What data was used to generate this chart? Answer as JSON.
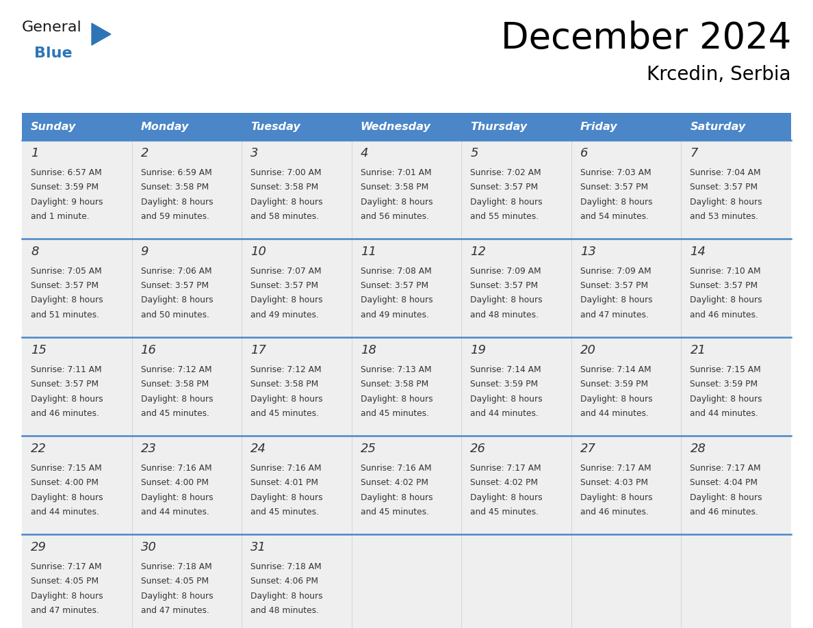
{
  "title": "December 2024",
  "subtitle": "Krcedin, Serbia",
  "header_color": "#4A86C8",
  "header_text_color": "#FFFFFF",
  "row_bg_color": "#EFEFEF",
  "empty_bg_color": "#FFFFFF",
  "separator_color": "#4A86C8",
  "text_color": "#333333",
  "day_names": [
    "Sunday",
    "Monday",
    "Tuesday",
    "Wednesday",
    "Thursday",
    "Friday",
    "Saturday"
  ],
  "days": [
    {
      "day": 1,
      "col": 0,
      "row": 0,
      "sunrise": "6:57 AM",
      "sunset": "3:59 PM",
      "daylight_h": "9 hours",
      "daylight_m": "and 1 minute."
    },
    {
      "day": 2,
      "col": 1,
      "row": 0,
      "sunrise": "6:59 AM",
      "sunset": "3:58 PM",
      "daylight_h": "8 hours",
      "daylight_m": "and 59 minutes."
    },
    {
      "day": 3,
      "col": 2,
      "row": 0,
      "sunrise": "7:00 AM",
      "sunset": "3:58 PM",
      "daylight_h": "8 hours",
      "daylight_m": "and 58 minutes."
    },
    {
      "day": 4,
      "col": 3,
      "row": 0,
      "sunrise": "7:01 AM",
      "sunset": "3:58 PM",
      "daylight_h": "8 hours",
      "daylight_m": "and 56 minutes."
    },
    {
      "day": 5,
      "col": 4,
      "row": 0,
      "sunrise": "7:02 AM",
      "sunset": "3:57 PM",
      "daylight_h": "8 hours",
      "daylight_m": "and 55 minutes."
    },
    {
      "day": 6,
      "col": 5,
      "row": 0,
      "sunrise": "7:03 AM",
      "sunset": "3:57 PM",
      "daylight_h": "8 hours",
      "daylight_m": "and 54 minutes."
    },
    {
      "day": 7,
      "col": 6,
      "row": 0,
      "sunrise": "7:04 AM",
      "sunset": "3:57 PM",
      "daylight_h": "8 hours",
      "daylight_m": "and 53 minutes."
    },
    {
      "day": 8,
      "col": 0,
      "row": 1,
      "sunrise": "7:05 AM",
      "sunset": "3:57 PM",
      "daylight_h": "8 hours",
      "daylight_m": "and 51 minutes."
    },
    {
      "day": 9,
      "col": 1,
      "row": 1,
      "sunrise": "7:06 AM",
      "sunset": "3:57 PM",
      "daylight_h": "8 hours",
      "daylight_m": "and 50 minutes."
    },
    {
      "day": 10,
      "col": 2,
      "row": 1,
      "sunrise": "7:07 AM",
      "sunset": "3:57 PM",
      "daylight_h": "8 hours",
      "daylight_m": "and 49 minutes."
    },
    {
      "day": 11,
      "col": 3,
      "row": 1,
      "sunrise": "7:08 AM",
      "sunset": "3:57 PM",
      "daylight_h": "8 hours",
      "daylight_m": "and 49 minutes."
    },
    {
      "day": 12,
      "col": 4,
      "row": 1,
      "sunrise": "7:09 AM",
      "sunset": "3:57 PM",
      "daylight_h": "8 hours",
      "daylight_m": "and 48 minutes."
    },
    {
      "day": 13,
      "col": 5,
      "row": 1,
      "sunrise": "7:09 AM",
      "sunset": "3:57 PM",
      "daylight_h": "8 hours",
      "daylight_m": "and 47 minutes."
    },
    {
      "day": 14,
      "col": 6,
      "row": 1,
      "sunrise": "7:10 AM",
      "sunset": "3:57 PM",
      "daylight_h": "8 hours",
      "daylight_m": "and 46 minutes."
    },
    {
      "day": 15,
      "col": 0,
      "row": 2,
      "sunrise": "7:11 AM",
      "sunset": "3:57 PM",
      "daylight_h": "8 hours",
      "daylight_m": "and 46 minutes."
    },
    {
      "day": 16,
      "col": 1,
      "row": 2,
      "sunrise": "7:12 AM",
      "sunset": "3:58 PM",
      "daylight_h": "8 hours",
      "daylight_m": "and 45 minutes."
    },
    {
      "day": 17,
      "col": 2,
      "row": 2,
      "sunrise": "7:12 AM",
      "sunset": "3:58 PM",
      "daylight_h": "8 hours",
      "daylight_m": "and 45 minutes."
    },
    {
      "day": 18,
      "col": 3,
      "row": 2,
      "sunrise": "7:13 AM",
      "sunset": "3:58 PM",
      "daylight_h": "8 hours",
      "daylight_m": "and 45 minutes."
    },
    {
      "day": 19,
      "col": 4,
      "row": 2,
      "sunrise": "7:14 AM",
      "sunset": "3:59 PM",
      "daylight_h": "8 hours",
      "daylight_m": "and 44 minutes."
    },
    {
      "day": 20,
      "col": 5,
      "row": 2,
      "sunrise": "7:14 AM",
      "sunset": "3:59 PM",
      "daylight_h": "8 hours",
      "daylight_m": "and 44 minutes."
    },
    {
      "day": 21,
      "col": 6,
      "row": 2,
      "sunrise": "7:15 AM",
      "sunset": "3:59 PM",
      "daylight_h": "8 hours",
      "daylight_m": "and 44 minutes."
    },
    {
      "day": 22,
      "col": 0,
      "row": 3,
      "sunrise": "7:15 AM",
      "sunset": "4:00 PM",
      "daylight_h": "8 hours",
      "daylight_m": "and 44 minutes."
    },
    {
      "day": 23,
      "col": 1,
      "row": 3,
      "sunrise": "7:16 AM",
      "sunset": "4:00 PM",
      "daylight_h": "8 hours",
      "daylight_m": "and 44 minutes."
    },
    {
      "day": 24,
      "col": 2,
      "row": 3,
      "sunrise": "7:16 AM",
      "sunset": "4:01 PM",
      "daylight_h": "8 hours",
      "daylight_m": "and 45 minutes."
    },
    {
      "day": 25,
      "col": 3,
      "row": 3,
      "sunrise": "7:16 AM",
      "sunset": "4:02 PM",
      "daylight_h": "8 hours",
      "daylight_m": "and 45 minutes."
    },
    {
      "day": 26,
      "col": 4,
      "row": 3,
      "sunrise": "7:17 AM",
      "sunset": "4:02 PM",
      "daylight_h": "8 hours",
      "daylight_m": "and 45 minutes."
    },
    {
      "day": 27,
      "col": 5,
      "row": 3,
      "sunrise": "7:17 AM",
      "sunset": "4:03 PM",
      "daylight_h": "8 hours",
      "daylight_m": "and 46 minutes."
    },
    {
      "day": 28,
      "col": 6,
      "row": 3,
      "sunrise": "7:17 AM",
      "sunset": "4:04 PM",
      "daylight_h": "8 hours",
      "daylight_m": "and 46 minutes."
    },
    {
      "day": 29,
      "col": 0,
      "row": 4,
      "sunrise": "7:17 AM",
      "sunset": "4:05 PM",
      "daylight_h": "8 hours",
      "daylight_m": "and 47 minutes."
    },
    {
      "day": 30,
      "col": 1,
      "row": 4,
      "sunrise": "7:18 AM",
      "sunset": "4:05 PM",
      "daylight_h": "8 hours",
      "daylight_m": "and 47 minutes."
    },
    {
      "day": 31,
      "col": 2,
      "row": 4,
      "sunrise": "7:18 AM",
      "sunset": "4:06 PM",
      "daylight_h": "8 hours",
      "daylight_m": "and 48 minutes."
    }
  ],
  "num_rows": 5,
  "num_cols": 7,
  "logo_general_color": "#1a1a1a",
  "logo_blue_color": "#2E75B6",
  "logo_triangle_color": "#2E75B6"
}
